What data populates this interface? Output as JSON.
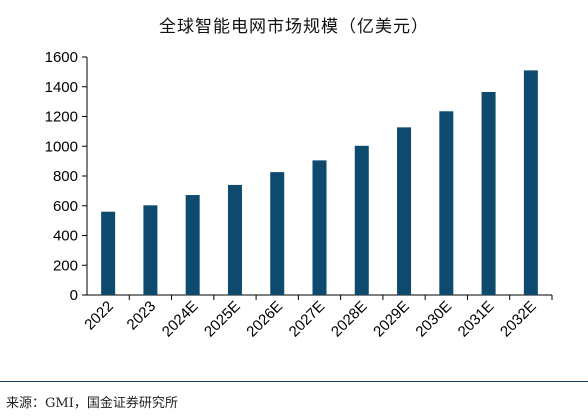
{
  "chart_data": {
    "type": "bar",
    "title": "全球智能电网市场规模（亿美元）",
    "categories": [
      "2022",
      "2023",
      "2024E",
      "2025E",
      "2026E",
      "2027E",
      "2028E",
      "2029E",
      "2030E",
      "2031E",
      "2032E"
    ],
    "series": [
      {
        "values": [
          560,
          603,
          672,
          740,
          826,
          905,
          1003,
          1127,
          1235,
          1365,
          1510
        ]
      }
    ],
    "xlabel": "",
    "ylabel": "",
    "ylim": [
      0,
      1600
    ],
    "yticks": [
      0,
      200,
      400,
      600,
      800,
      1000,
      1200,
      1400,
      1600
    ],
    "grid": false,
    "legend": "none",
    "bar_color": "#0d4a6e"
  },
  "footer": {
    "source": "来源：GMI，国金证券研究所"
  }
}
